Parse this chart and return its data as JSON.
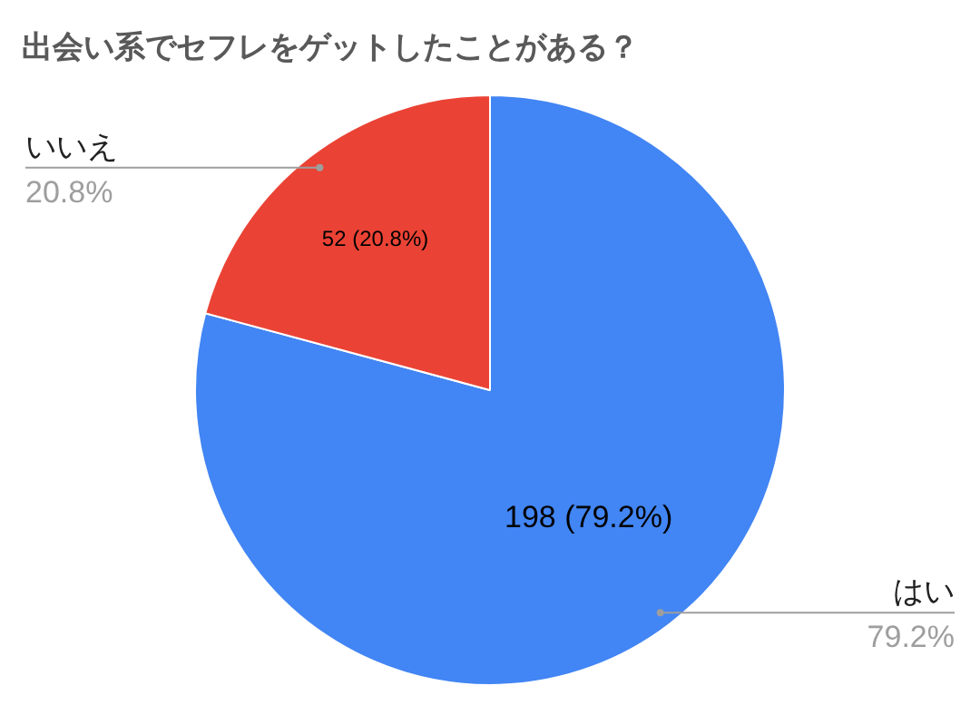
{
  "chart_data": {
    "type": "pie",
    "title": "出会い系でセフレをゲットしたことがある？",
    "categories": [
      "はい",
      "いいえ"
    ],
    "values": [
      198,
      52
    ],
    "colors": [
      "#4285f4",
      "#ea4335"
    ],
    "value_labels": [
      "198 (79.2%)",
      "52 (20.8%)"
    ],
    "annotations": [
      "79.2%",
      "20.8%"
    ],
    "legend": false
  }
}
